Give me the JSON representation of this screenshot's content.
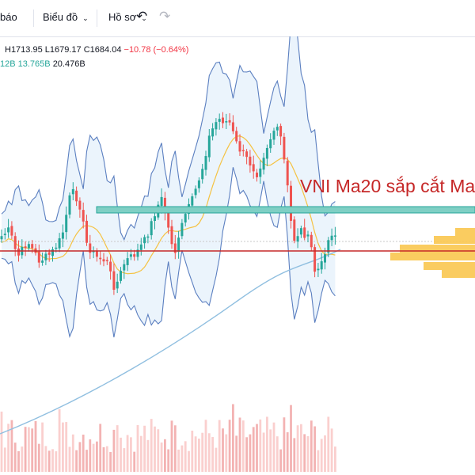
{
  "toolbar": {
    "alerts_label": "báo",
    "chart_label": "Biểu đồ",
    "profile_label": "Hồ sơ",
    "undo_icon": "undo-icon",
    "redo_icon": "redo-icon"
  },
  "legend": {
    "high": "H1713.95",
    "low": "L1679.17",
    "close": "C1684.04",
    "change": "−10.78 (−0.64%)",
    "vol_1": "12B",
    "vol_2": "13.765B",
    "vol_3": "20.476B"
  },
  "annotation": "VNI Ma20 sắp cắt Ma",
  "colors": {
    "up": "#26a69a",
    "down": "#ef5350",
    "ma20": "#f5c242",
    "bollinger": "#5b7fc0",
    "long_ma": "#90bfe0",
    "zone": "#26a69a",
    "support_line": "#c62828",
    "volume_profile": "#f9c74f"
  },
  "chart_data": {
    "type": "candlestick",
    "last_price": {
      "high": 1713.95,
      "low": 1679.17,
      "close": 1684.04,
      "change": -10.78,
      "change_pct": -0.64
    },
    "shapes": [
      "horizontal support line",
      "rectangle zone",
      "volume profile",
      "bollinger bands",
      "moving averages",
      "volume bars"
    ]
  }
}
